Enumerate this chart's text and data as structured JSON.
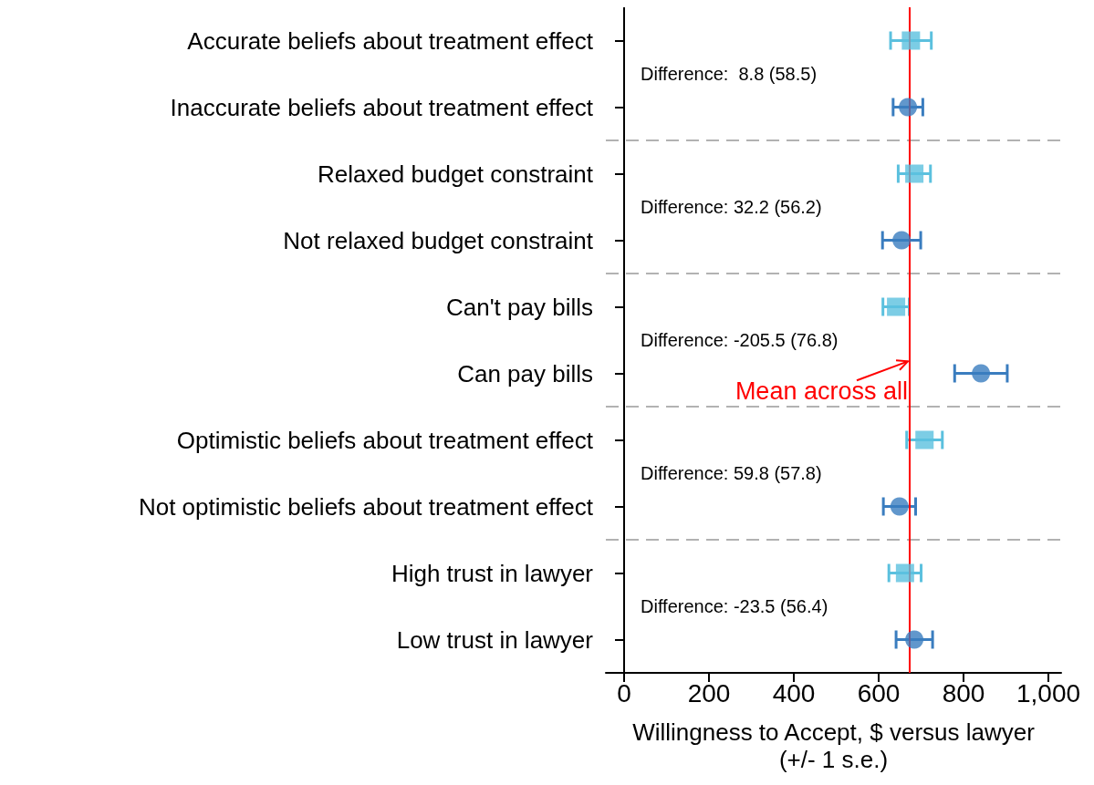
{
  "chart_data": {
    "type": "scatter",
    "orientation": "horizontal",
    "categories": [
      "Accurate beliefs about treatment effect",
      "Inaccurate beliefs about treatment effect",
      "Relaxed budget constraint",
      "Not relaxed budget constraint",
      "Can't pay bills",
      "Can pay bills",
      "Optimistic beliefs about treatment effect",
      "Not optimistic beliefs about treatment effect",
      "High trust in lawyer",
      "Low trust in lawyer"
    ],
    "series": [
      {
        "color": "#5bc0de",
        "marker": "square",
        "values": [
          676,
          null,
          684,
          null,
          641,
          null,
          708,
          null,
          662,
          null
        ],
        "errors": [
          48,
          null,
          38,
          null,
          31,
          null,
          42,
          null,
          38,
          null
        ]
      },
      {
        "color": "#3a7dbf",
        "marker": "circle",
        "values": [
          null,
          669,
          null,
          654,
          null,
          841,
          null,
          649,
          null,
          684
        ],
        "errors": [
          null,
          35,
          null,
          45,
          null,
          62,
          null,
          38,
          null,
          43
        ]
      }
    ],
    "xlabel": "Willingness to Accept, $ versus lawyer\n(+/- 1 s.e.)",
    "xlim": [
      -43,
      1030
    ],
    "xticks": [
      0,
      200,
      400,
      600,
      800,
      {
        "value": 1000,
        "label": "1,000"
      }
    ],
    "ref_lines": [
      {
        "axis": "x",
        "value": 673,
        "label": "Mean across all",
        "color": "#ff0000",
        "line_style": "solid"
      }
    ],
    "annotations": [
      "Difference:  8.8 (58.5)",
      "Difference: 32.2 (56.2)",
      "Difference: -205.5 (76.8)",
      "Difference: 59.8 (57.8)",
      "Difference: -23.5 (56.4)"
    ],
    "grid": false
  }
}
